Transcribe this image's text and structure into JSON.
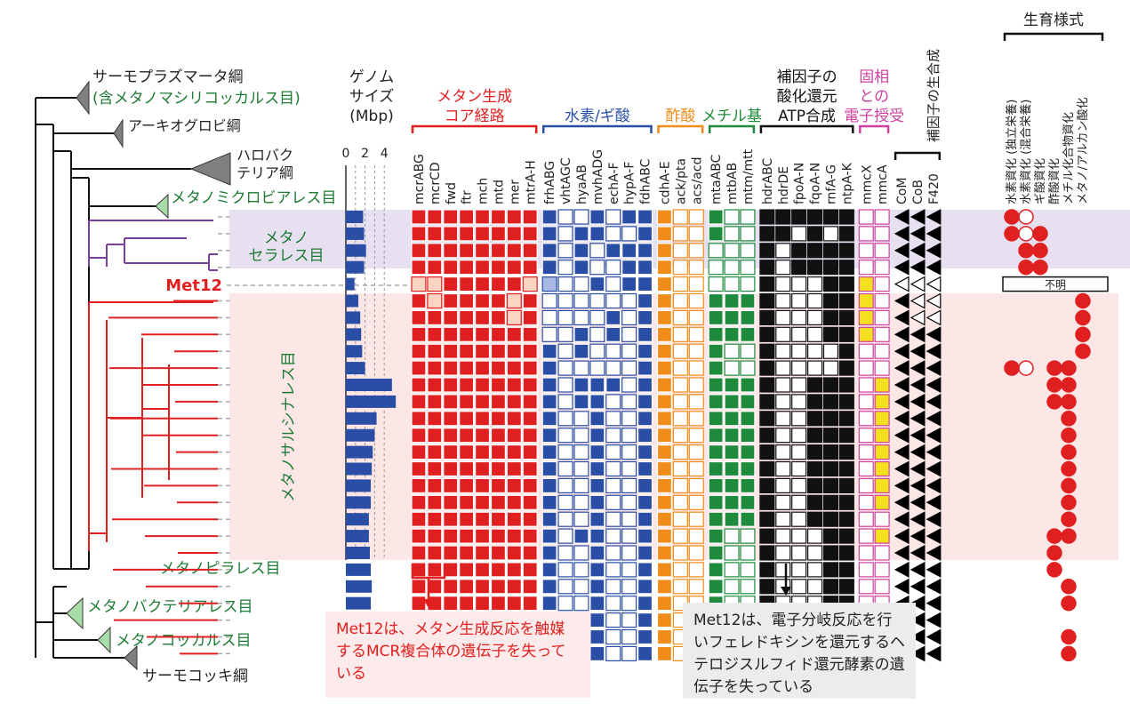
{
  "tree": {
    "clades": [
      {
        "id": "thermoplasmata",
        "text": "サーモプラズマータ綱",
        "color": "#222222",
        "tri": "#808080"
      },
      {
        "id": "thermoplasmata-sub",
        "text": "(含メタノマシリコッカルス目)",
        "color": "#1e7b35",
        "tri": ""
      },
      {
        "id": "archaeoglobi",
        "text": "アーキオグロビ綱",
        "color": "#222222",
        "tri": "#808080"
      },
      {
        "id": "halobacteria",
        "text": "ハロバクテリア綱",
        "color": "#222222",
        "tri": "#808080"
      },
      {
        "id": "methanomicrobiales",
        "text": "メタノミクロビアレス目",
        "color": "#1e7b35",
        "tri": "#a8dca8"
      },
      {
        "id": "methanopyrales",
        "text": "メタノピラレス目",
        "color": "#1e7b35",
        "tri": ""
      },
      {
        "id": "methanobacteriales",
        "text": "メタノバクテリアレス目",
        "color": "#1e7b35",
        "tri": "#a8dca8"
      },
      {
        "id": "methanococcales",
        "text": "メタノコッカルス目",
        "color": "#1e7b35",
        "tri": "#a8dca8"
      },
      {
        "id": "thermococci",
        "text": "サーモコッキ綱",
        "color": "#222222",
        "tri": "#808080"
      }
    ],
    "groups": {
      "methanocellales_line1": "メタノ",
      "methanocellales_line2": "セラレス目",
      "met12": "Met12",
      "methanosarcinales": "メタノサルシナレス目"
    },
    "colors": {
      "methanocellales": "#7b3f9e",
      "met12": "#e02020",
      "methanosarcinales": "#e02020",
      "outgroup": "#111111"
    }
  },
  "genome": {
    "title_line1": "ゲノム",
    "title_line2": "サイズ",
    "unit": "(Mbp)",
    "ticks": [
      "0",
      "2",
      "4"
    ],
    "max": 5,
    "values": [
      1.8,
      1.9,
      2.1,
      1.9,
      0.9,
      1.3,
      1.5,
      1.6,
      1.7,
      2.0,
      4.8,
      5.2,
      3.2,
      3.0,
      2.8,
      2.7,
      2.6,
      2.6,
      2.4,
      2.4,
      2.5,
      2.6,
      2.7,
      2.6,
      2.5,
      1.8,
      1.3
    ],
    "color": "#2a4ea6"
  },
  "categories": [
    {
      "id": "methanogenesis",
      "title_lines": [
        "メタン生成",
        "コア経路"
      ],
      "color": "#e02020",
      "genes": [
        "mcrABG",
        "mcrCD",
        "fwd",
        "ftr",
        "mch",
        "mtd",
        "mer",
        "mtrA-H"
      ]
    },
    {
      "id": "h2-formate",
      "title_lines": [
        "水素/ギ酸"
      ],
      "color": "#2a4ea6",
      "genes": [
        "frhABG",
        "vhtAGC",
        "hyaAB",
        "mvhADG",
        "echA-F",
        "hypA-F",
        "fdhABC"
      ]
    },
    {
      "id": "acetate",
      "title_lines": [
        "酢酸"
      ],
      "color": "#f08c1a",
      "genes": [
        "cdhA-E",
        "ack/pta",
        "acs/acd"
      ]
    },
    {
      "id": "methyl",
      "title_lines": [
        "メチル基"
      ],
      "color": "#1e8a3c",
      "genes": [
        "mtaABC",
        "mtbAB",
        "mtm/mtt"
      ]
    },
    {
      "id": "cofactor-redox",
      "title_lines": [
        "補因子の",
        "酸化還元",
        "ATP合成"
      ],
      "color": "#111111",
      "genes": [
        "hdrABC",
        "hdrDE",
        "fpoA-N",
        "fqoA-N",
        "rnfA-G",
        "ntpA-K"
      ]
    },
    {
      "id": "solid-phase",
      "title_lines": [
        "固相",
        "との",
        "電子授受"
      ],
      "color": "#d040a0",
      "genes": [
        "mmcX",
        "mmcA"
      ]
    },
    {
      "id": "cofactor-biosynthesis",
      "title_lines": [
        "補因子の生合成"
      ],
      "color": "#111111",
      "genes": [
        "CoM",
        "CoB",
        "F420"
      ]
    }
  ],
  "matrix": [
    "11111111|1001011|100|100|111111|00|222",
    "11111111|1011001|100|100|110101|00|222",
    "11111111|1010111|100|000|101111|00|222",
    "11111111|1010011|100|000|101111|00|222",
    "LL11111L|3001011|100|000|100011|Y0|111",
    "1L1111L1|0000001|100|111|100011|Y0|211",
    "111111L1|0000101|100|111|100011|Y0|211",
    "11111111|0010101|100|111|100011|Y0|222",
    "11111111|1010001|100|100|100001|00|222",
    "11111111|1000001|100|100|100001|00|222",
    "11111111|1011101|100|111|100111|0Y|222",
    "11111111|1011001|100|111|100111|0Y|222",
    "11111111|1001001|100|111|100111|0Y|222",
    "11111111|1001001|100|111|100111|0Y|222",
    "11111111|1001001|100|111|100111|0Y|222",
    "11111111|1001001|100|111|100111|0Y|222",
    "11111111|1001001|100|111|100111|0Y|222",
    "11111111|1001001|100|111|100111|0Y|222",
    "11111111|1001001|100|111|100111|00|222",
    "11111111|1011001|100|100|100011|0Y|222",
    "11111111|1001001|100|100|100011|00|222",
    "11111111|1001001|100|100|100011|00|222",
    "11111111|1001001|100|100|100011|00|222",
    "11111111|1001001|100|100|100011|00|222",
    "11111111|1001001|100|100|100011|00|222",
    "11111111|1001001|100|100|100011|00|222",
    "11111111|1001001|100|100|100011|00|122"
  ],
  "lifestyle": {
    "title": "生育様式",
    "columns": [
      "水素資化",
      "(独立栄養)",
      "水素資化",
      "(混合栄養)",
      "ギ酸資化",
      "酢酸資化",
      "メチル化合物資化",
      "メタノ/アルカン酸化"
    ],
    "headers": [
      "水素資化 (独立栄養)",
      "水素資化 (混合栄養)",
      "ギ酸資化",
      "酢酸資化",
      "メチル化合物資化",
      "メタノ/アルカン酸化"
    ],
    "unknown_label": "不明",
    "rows": [
      [
        1,
        2,
        0,
        0,
        0,
        0
      ],
      [
        1,
        2,
        1,
        0,
        0,
        0
      ],
      [
        0,
        1,
        1,
        0,
        0,
        0
      ],
      [
        0,
        1,
        1,
        0,
        0,
        0
      ],
      [
        9,
        0,
        0,
        0,
        0,
        0
      ],
      [
        0,
        0,
        0,
        0,
        0,
        1
      ],
      [
        0,
        0,
        0,
        0,
        0,
        1
      ],
      [
        0,
        0,
        0,
        0,
        0,
        1
      ],
      [
        0,
        0,
        0,
        0,
        0,
        1
      ],
      [
        1,
        2,
        0,
        1,
        1,
        0
      ],
      [
        0,
        0,
        0,
        1,
        1,
        0
      ],
      [
        0,
        0,
        0,
        1,
        1,
        0
      ],
      [
        0,
        0,
        0,
        0,
        1,
        0
      ],
      [
        0,
        0,
        0,
        0,
        1,
        0
      ],
      [
        0,
        0,
        0,
        0,
        1,
        0
      ],
      [
        0,
        0,
        0,
        0,
        1,
        0
      ],
      [
        0,
        0,
        0,
        0,
        1,
        0
      ],
      [
        0,
        0,
        0,
        0,
        1,
        0
      ],
      [
        0,
        0,
        0,
        0,
        1,
        0
      ],
      [
        0,
        0,
        0,
        1,
        1,
        0
      ],
      [
        0,
        0,
        0,
        1,
        0,
        0
      ],
      [
        0,
        0,
        0,
        1,
        0,
        0
      ],
      [
        0,
        0,
        0,
        0,
        1,
        0
      ],
      [
        0,
        0,
        0,
        0,
        1,
        0
      ],
      [
        0,
        0,
        0,
        0,
        0,
        0
      ],
      [
        0,
        0,
        0,
        0,
        1,
        0
      ],
      [
        0,
        0,
        0,
        0,
        1,
        0
      ]
    ]
  },
  "callouts": {
    "left": "Met12は、メタン生成反応を触媒するMCR複合体の遺伝子を失っている",
    "right": "Met12は、電子分岐反応を行いフェレドキシンを還元するヘテロジスルフィド還元酵素の遺伝子を失っている"
  },
  "colors": {
    "methanogenesis": "#e02020",
    "methanogenesis_light": "#fbd5c2",
    "h2": "#2a4ea6",
    "h2_light": "#a8b9e6",
    "acetate": "#f08c1a",
    "acetate_light": "#fde2c8",
    "methyl": "#1e8a3c",
    "methyl_light": "#cfe6cc",
    "redox": "#111111",
    "redox_light": "#d6d6d6",
    "solid": "#d040a0",
    "solid_fill": "#f5e020",
    "lifestyle_dot": "#e02020",
    "band_methanocellales": "#e6e0f0",
    "band_methanosarcinales": "#fce6e6"
  }
}
